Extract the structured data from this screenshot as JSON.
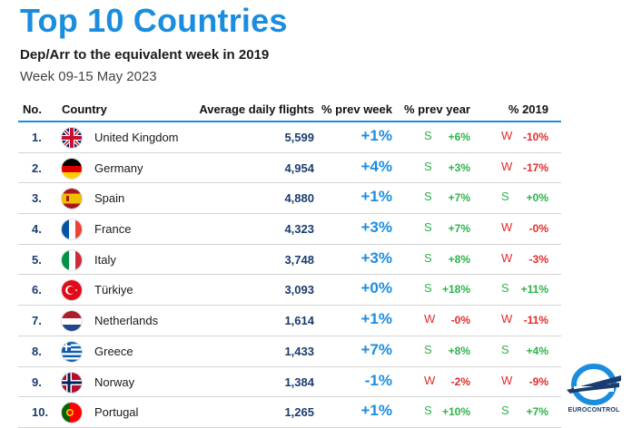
{
  "title": "Top 10 Countries",
  "subtitle": "Dep/Arr to the equivalent week in 2019",
  "week": "Week 09-15 May 2023",
  "headers": {
    "no": "No.",
    "country": "Country",
    "flights": "Average daily flights",
    "prev_week": "% prev week",
    "prev_year": "% prev year",
    "y2019": "% 2019"
  },
  "colors": {
    "accent": "#1b8ddf",
    "positive": "#2db34a",
    "negative": "#e32b2b",
    "navy": "#1a3c6e"
  },
  "rows": [
    {
      "rank": "1.",
      "country": "United Kingdom",
      "flag": "uk-flag-icon",
      "flights": "5,599",
      "prev_week": "+1%",
      "py_label": "S",
      "py_value": "+6%",
      "y19_label": "W",
      "y19_value": "-10%"
    },
    {
      "rank": "2.",
      "country": "Germany",
      "flag": "germany-flag-icon",
      "flights": "4,954",
      "prev_week": "+4%",
      "py_label": "S",
      "py_value": "+3%",
      "y19_label": "W",
      "y19_value": "-17%"
    },
    {
      "rank": "3.",
      "country": "Spain",
      "flag": "spain-flag-icon",
      "flights": "4,880",
      "prev_week": "+1%",
      "py_label": "S",
      "py_value": "+7%",
      "y19_label": "S",
      "y19_value": "+0%"
    },
    {
      "rank": "4.",
      "country": "France",
      "flag": "france-flag-icon",
      "flights": "4,323",
      "prev_week": "+3%",
      "py_label": "S",
      "py_value": "+7%",
      "y19_label": "W",
      "y19_value": "-0%"
    },
    {
      "rank": "5.",
      "country": "Italy",
      "flag": "italy-flag-icon",
      "flights": "3,748",
      "prev_week": "+3%",
      "py_label": "S",
      "py_value": "+8%",
      "y19_label": "W",
      "y19_value": "-3%"
    },
    {
      "rank": "6.",
      "country": "Türkiye",
      "flag": "turkiye-flag-icon",
      "flights": "3,093",
      "prev_week": "+0%",
      "py_label": "S",
      "py_value": "+18%",
      "y19_label": "S",
      "y19_value": "+11%"
    },
    {
      "rank": "7.",
      "country": "Netherlands",
      "flag": "netherlands-flag-icon",
      "flights": "1,614",
      "prev_week": "+1%",
      "py_label": "W",
      "py_value": "-0%",
      "y19_label": "W",
      "y19_value": "-11%"
    },
    {
      "rank": "8.",
      "country": "Greece",
      "flag": "greece-flag-icon",
      "flights": "1,433",
      "prev_week": "+7%",
      "py_label": "S",
      "py_value": "+8%",
      "y19_label": "S",
      "y19_value": "+4%"
    },
    {
      "rank": "9.",
      "country": "Norway",
      "flag": "norway-flag-icon",
      "flights": "1,384",
      "prev_week": "-1%",
      "py_label": "W",
      "py_value": "-2%",
      "y19_label": "W",
      "y19_value": "-9%"
    },
    {
      "rank": "10.",
      "country": "Portugal",
      "flag": "portugal-flag-icon",
      "flights": "1,265",
      "prev_week": "+1%",
      "py_label": "S",
      "py_value": "+10%",
      "y19_label": "S",
      "y19_value": "+7%"
    }
  ],
  "logo_text": "EUROCONTROL",
  "chart_data": {
    "type": "table",
    "title": "Top 10 Countries",
    "subtitle": "Dep/Arr to the equivalent week in 2019",
    "columns": [
      "No.",
      "Country",
      "Average daily flights",
      "% prev week",
      "% prev year",
      "% 2019"
    ],
    "rows": [
      [
        "1.",
        "United Kingdom",
        5599,
        "+1%",
        "S +6%",
        "W -10%"
      ],
      [
        "2.",
        "Germany",
        4954,
        "+4%",
        "S +3%",
        "W -17%"
      ],
      [
        "3.",
        "Spain",
        4880,
        "+1%",
        "S +7%",
        "S +0%"
      ],
      [
        "4.",
        "France",
        4323,
        "+3%",
        "S +7%",
        "W -0%"
      ],
      [
        "5.",
        "Italy",
        3748,
        "+3%",
        "S +8%",
        "W -3%"
      ],
      [
        "6.",
        "Türkiye",
        3093,
        "+0%",
        "S +18%",
        "S +11%"
      ],
      [
        "7.",
        "Netherlands",
        1614,
        "+1%",
        "W -0%",
        "W -11%"
      ],
      [
        "8.",
        "Greece",
        1433,
        "+7%",
        "S +8%",
        "S +4%"
      ],
      [
        "9.",
        "Norway",
        1384,
        "-1%",
        "W -2%",
        "W -9%"
      ],
      [
        "10.",
        "Portugal",
        1265,
        "+1%",
        "S +10%",
        "S +7%"
      ]
    ]
  }
}
